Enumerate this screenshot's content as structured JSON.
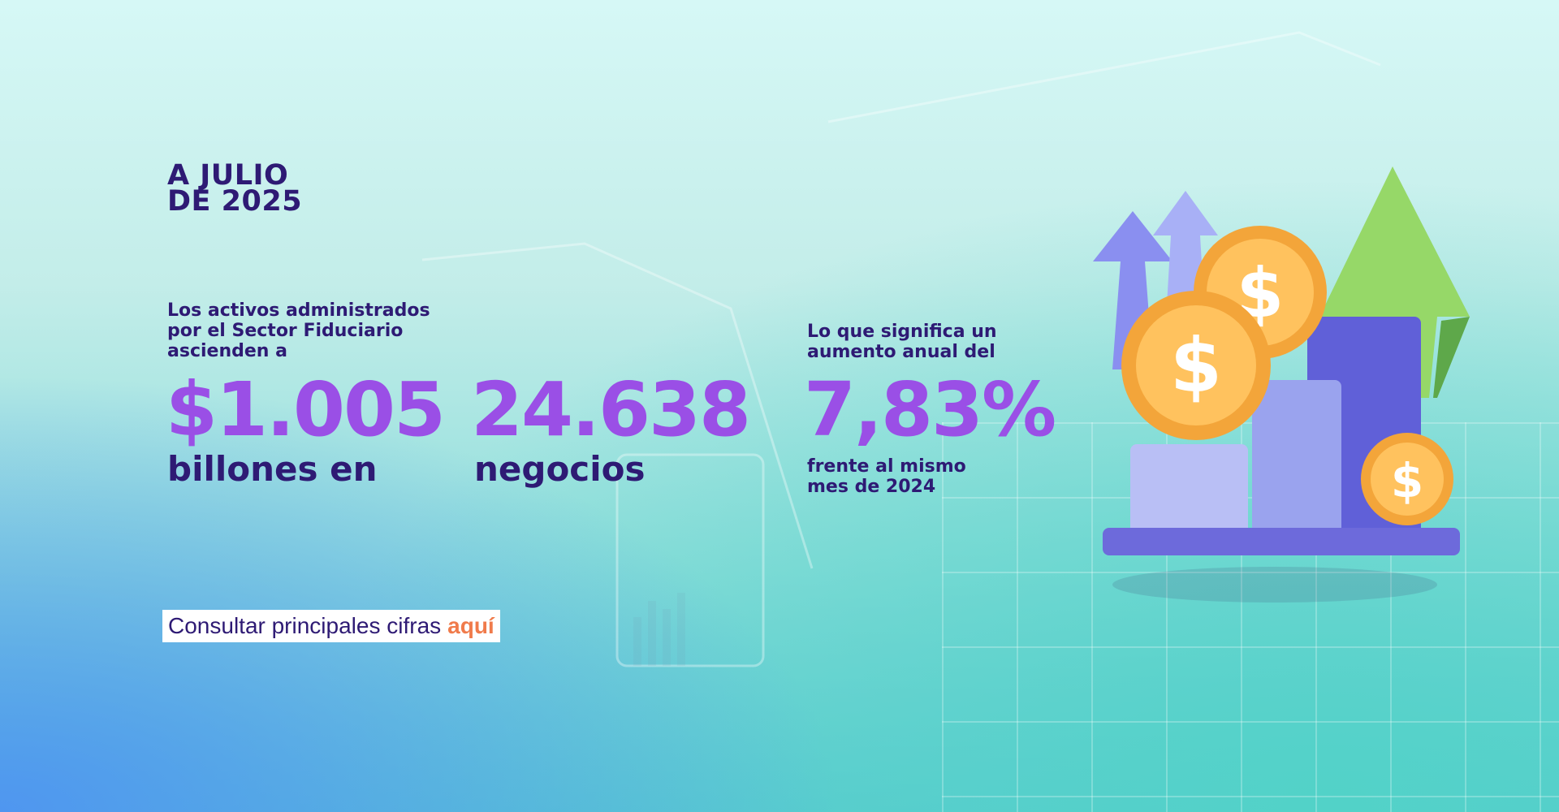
{
  "header": {
    "kicker_line1": "A JULIO",
    "kicker_line2": "DE 2025"
  },
  "stats": {
    "assets": {
      "lead_line1": "Los activos administrados",
      "lead_line2": "por el Sector Fiduciario",
      "lead_line3": "ascienden a",
      "value": "$1.005",
      "unit": "billones en"
    },
    "business": {
      "value": "24.638",
      "unit": "negocios"
    },
    "growth": {
      "lead_line1": "Lo que significa un",
      "lead_line2": "aumento anual del",
      "value": "7,83%",
      "note_line1": "frente al mismo",
      "note_line2": "mes de 2024"
    }
  },
  "cta": {
    "text": "Consultar principales cifras",
    "link": "aquí"
  },
  "colors": {
    "navy": "#2e1a74",
    "purple": "#9a4fe6",
    "orange": "#f07b4b"
  },
  "illustration": {
    "icon": "bar-chart-coins-arrows-icon",
    "coin_symbol": "$"
  }
}
